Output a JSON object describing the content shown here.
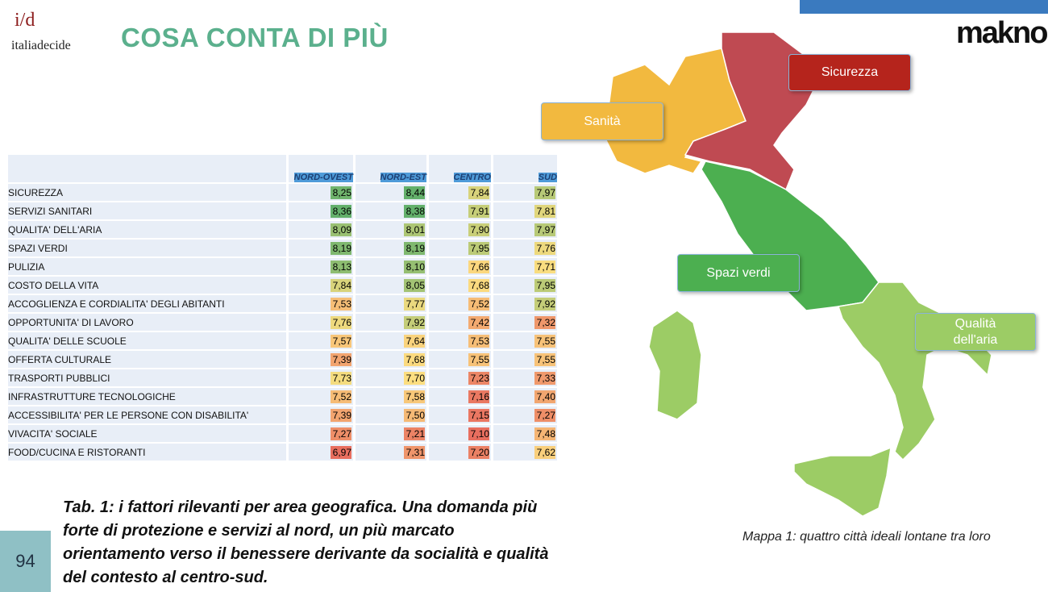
{
  "header": {
    "logo_mark": "i/d",
    "logo_name": "italiadecide",
    "title": "COSA CONTA DI PIÙ",
    "partner_logo": "makno"
  },
  "table": {
    "columns": [
      "NORD-OVEST",
      "NORD-EST",
      "CENTRO",
      "SUD"
    ],
    "rows": [
      [
        "SICUREZZA",
        "8,25",
        "8,44",
        "7,84",
        "7,97"
      ],
      [
        "SERVIZI SANITARI",
        "8,36",
        "8,38",
        "7,91",
        "7,81"
      ],
      [
        "QUALITA' DELL'ARIA",
        "8,09",
        "8,01",
        "7,90",
        "7,97"
      ],
      [
        "SPAZI VERDI",
        "8,19",
        "8,19",
        "7,95",
        "7,76"
      ],
      [
        "PULIZIA",
        "8,13",
        "8,10",
        "7,66",
        "7,71"
      ],
      [
        "COSTO DELLA VITA",
        "7,84",
        "8,05",
        "7,68",
        "7,95"
      ],
      [
        "ACCOGLIENZA E CORDIALITA' DEGLI ABITANTI",
        "7,53",
        "7,77",
        "7,52",
        "7,92"
      ],
      [
        "OPPORTUNITA' DI LAVORO",
        "7,76",
        "7,92",
        "7,42",
        "7,32"
      ],
      [
        "QUALITA' DELLE SCUOLE",
        "7,57",
        "7,64",
        "7,53",
        "7,55"
      ],
      [
        "OFFERTA CULTURALE",
        "7,39",
        "7,68",
        "7,55",
        "7,55"
      ],
      [
        "TRASPORTI PUBBLICI",
        "7,73",
        "7,70",
        "7,23",
        "7,33"
      ],
      [
        "INFRASTRUTTURE TECNOLOGICHE",
        "7,52",
        "7,58",
        "7,16",
        "7,40"
      ],
      [
        "ACCESSIBILITA' PER LE PERSONE CON DISABILITA'",
        "7,39",
        "7,50",
        "7,15",
        "7,27"
      ],
      [
        "VIVACITA' SOCIALE",
        "7,27",
        "7,21",
        "7,10",
        "7,48"
      ],
      [
        "FOOD/CUCINA E RISTORANTI",
        "6,97",
        "7,31",
        "7,20",
        "7,62"
      ]
    ]
  },
  "caption": "Tab. 1: i fattori rilevanti per area geografica.  Una domanda più forte di protezione e servizi al nord, un più marcato orientamento verso il benessere derivante da socialità e qualità del contesto al centro-sud.",
  "map": {
    "labels": [
      "Sicurezza",
      "Sanità",
      "Spazi verdi",
      "Qualità dell'aria"
    ],
    "caption": "Mappa 1: quattro città ideali lontane tra loro"
  },
  "page_number": "94"
}
